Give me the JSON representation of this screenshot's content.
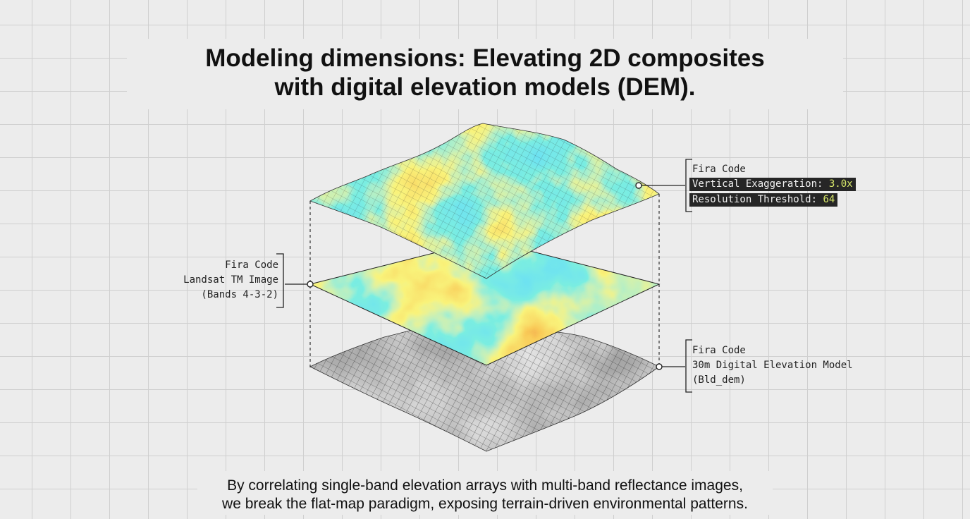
{
  "title": {
    "line1": "Modeling dimensions: Elevating 2D composites",
    "line2": "with digital elevation models (DEM)."
  },
  "caption": {
    "line1": "By correlating single-band elevation arrays with multi-band reflectance images,",
    "line2": "we break the flat-map paradigm, exposing terrain-driven environmental patterns."
  },
  "labels": {
    "landsat": {
      "font": "Fira Code",
      "name": "Landsat TM Image",
      "detail": "(Bands 4-3-2)"
    },
    "surface": {
      "font": "Fira Code",
      "exaggeration_label": "Vertical Exaggeration:",
      "exaggeration_value": "3.0x",
      "threshold_label": "Resolution Threshold:",
      "threshold_value": "64"
    },
    "dem": {
      "font": "Fira Code",
      "name": "30m Digital Elevation Model",
      "detail": "(Bld_dem)"
    }
  },
  "colors": {
    "low": "#1238a8",
    "mid": "#33cce0",
    "high": "#f0e030",
    "peak": "#c21d0c"
  }
}
